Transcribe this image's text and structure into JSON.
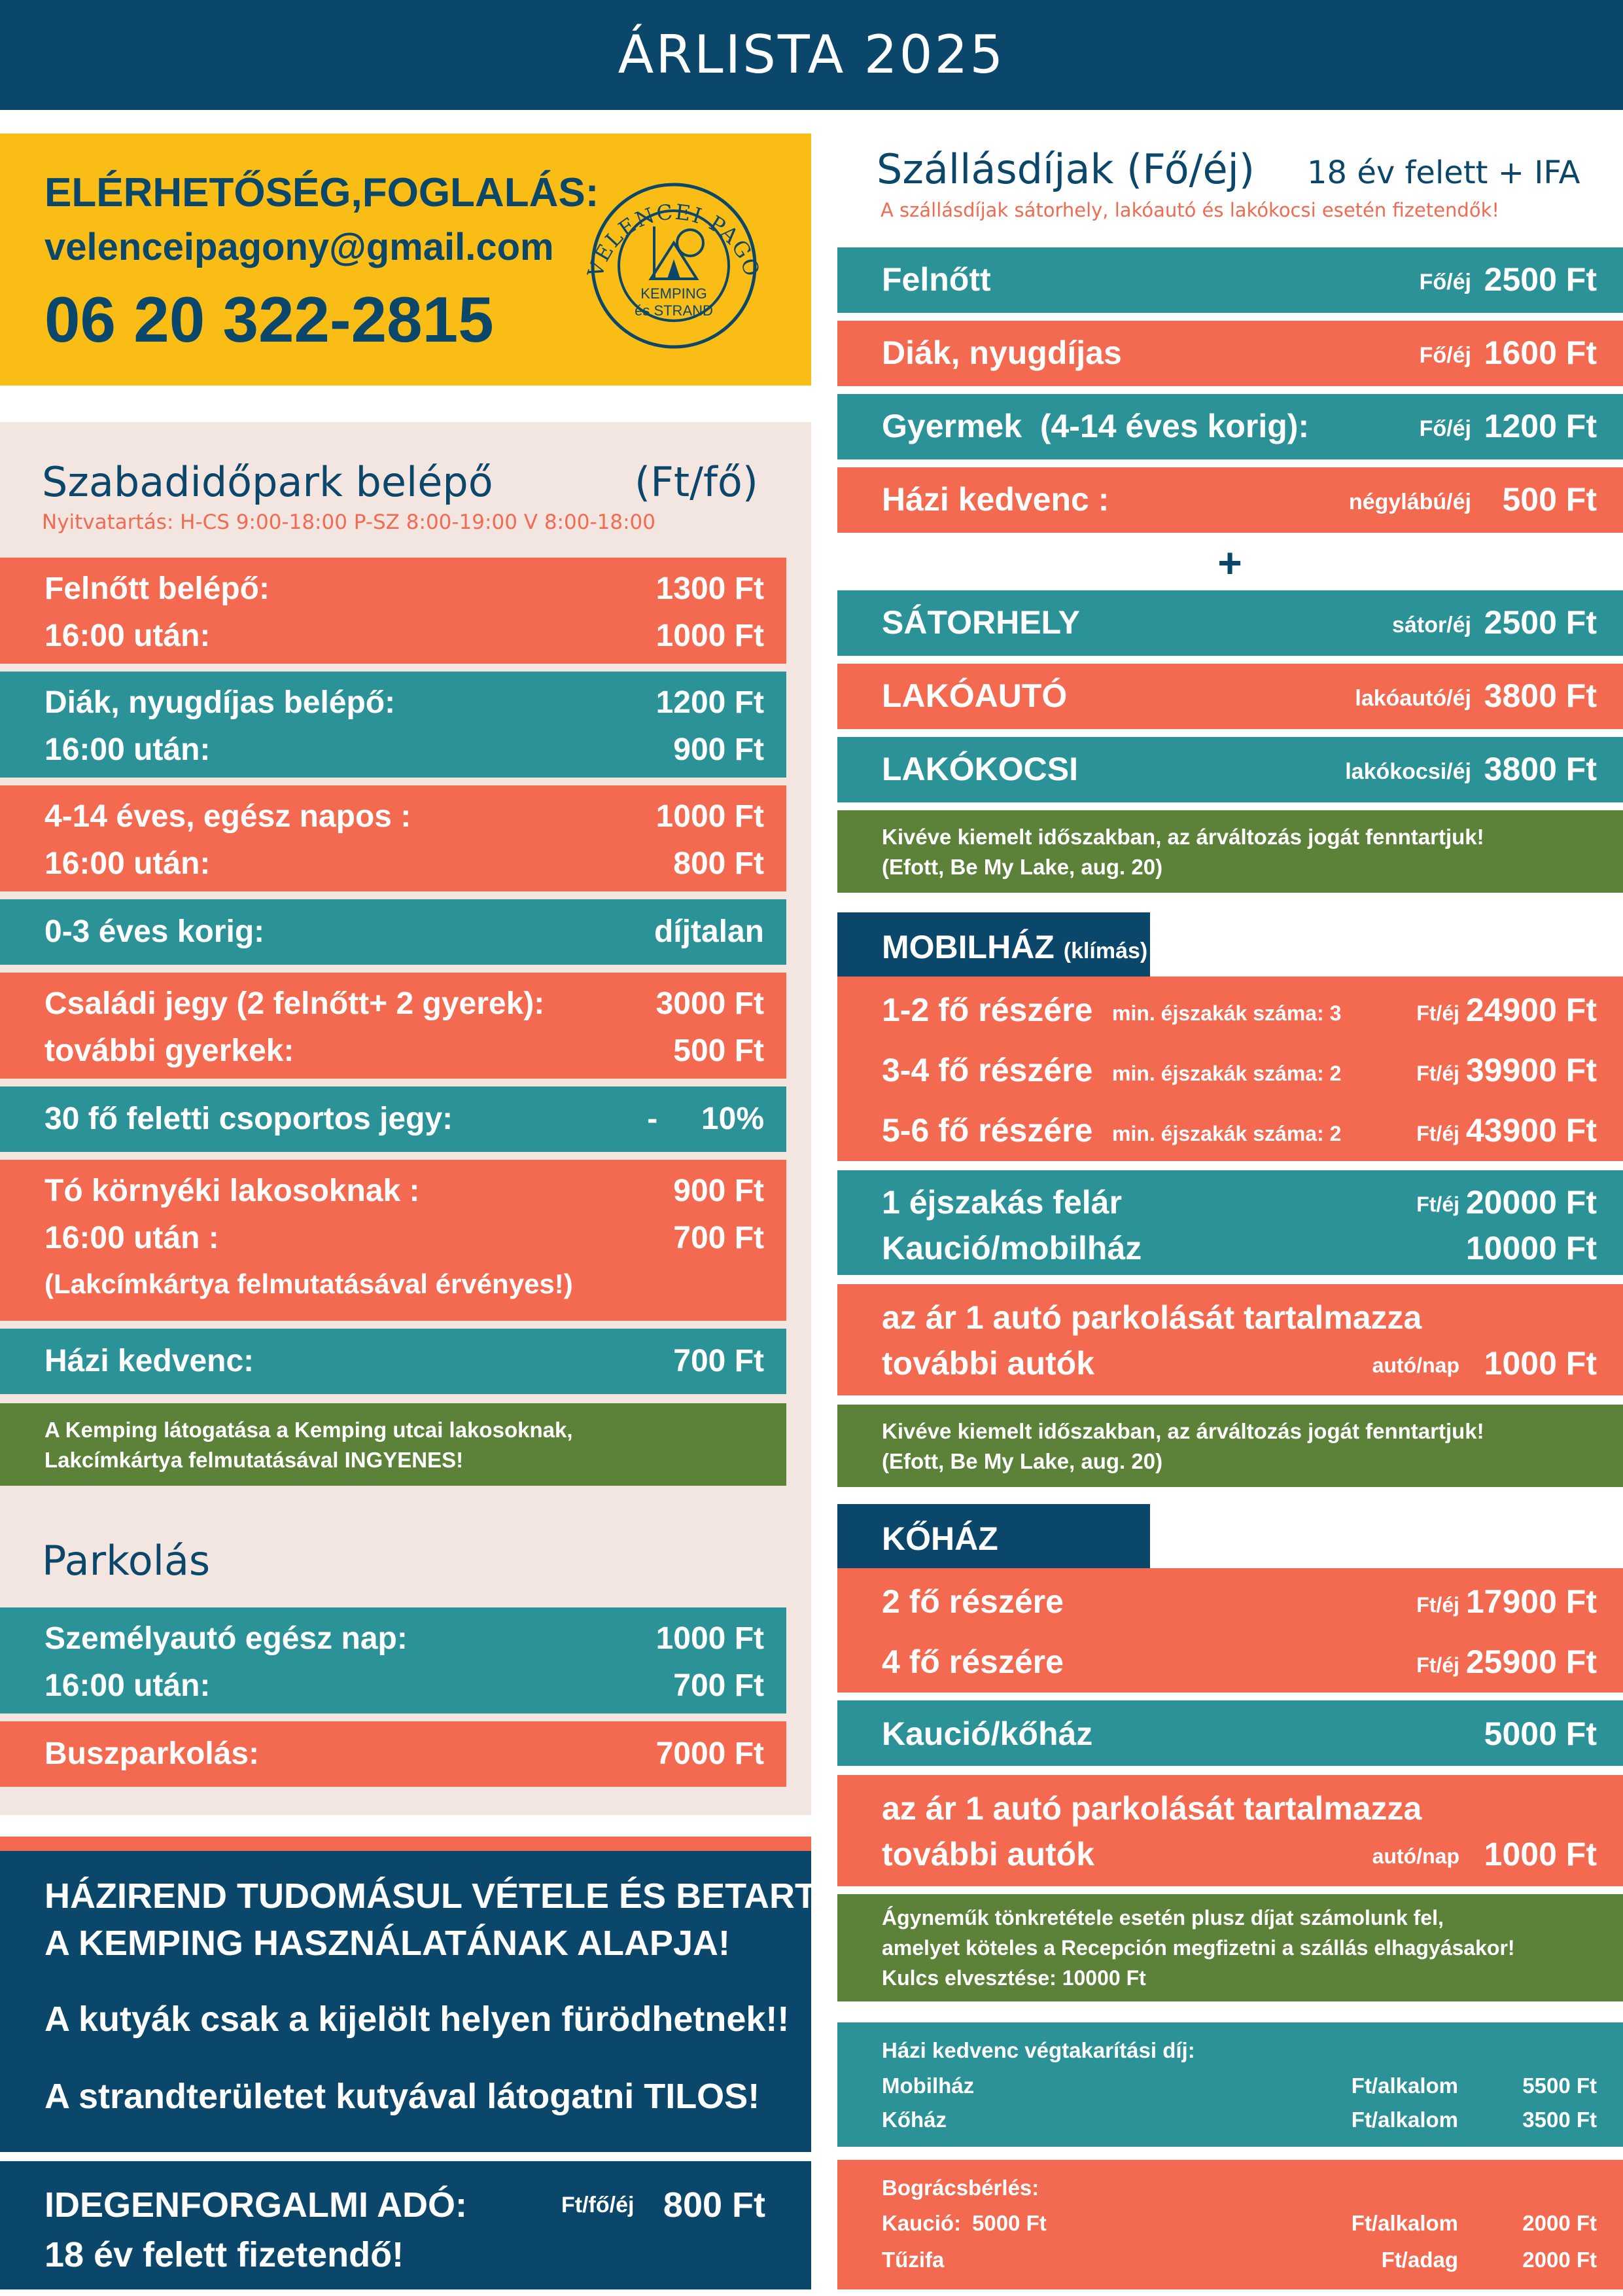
{
  "header": {
    "title": "ÁRLISTA 2025"
  },
  "contact": {
    "heading": "ELÉRHETŐSÉG,FOGLALÁS:",
    "email": "velenceipagony@gmail.com",
    "phone": "06 20 322-2815"
  },
  "logo": {
    "name": "VELENCEI PAGONY",
    "line1": "KEMPING",
    "line2": "és STRAND"
  },
  "park": {
    "title": "Szabadidőpark belépő",
    "unit": "(Ft/fő)",
    "hours": "Nyitvatartás:  H-CS 9:00-18:00   P-SZ 8:00-19:00   V 8:00-18:00",
    "rows": [
      {
        "l1": "Felnőtt belépő:",
        "v1": "1300 Ft",
        "l2": "16:00 után:",
        "v2": "1000 Ft"
      },
      {
        "l1": "Diák, nyugdíjas belépő:",
        "v1": "1200 Ft",
        "l2": "16:00 után:",
        "v2": "900 Ft"
      },
      {
        "l1": "4-14  éves, egész napos :",
        "v1": "1000 Ft",
        "l2": "16:00 után:",
        "v2": "800 Ft"
      },
      {
        "l1": "0-3 éves korig:",
        "v1": "díjtalan"
      },
      {
        "l1": "Családi jegy (2 felnőtt+ 2 gyerek):",
        "v1": "3000 Ft",
        "l2": "további gyerkek:",
        "v2": "500 Ft"
      },
      {
        "l1": "30 fő feletti csoportos jegy:",
        "v1": "-     10%"
      },
      {
        "l1": "Tó környéki lakosoknak :",
        "v1": "900 Ft",
        "l2": "16:00 után :",
        "v2": "700 Ft",
        "l3": "(Lakcímkártya felmutatásával érvényes!)"
      },
      {
        "l1": "Házi kedvenc:",
        "v1": "700 Ft"
      }
    ],
    "note1": "A Kemping látogatása a Kemping utcai lakosoknak,",
    "note2": "Lakcímkártya felmutatásával INGYENES!"
  },
  "parking": {
    "title": "Parkolás",
    "car_label": "Személyautó egész nap:",
    "car_value": "1000 Ft",
    "car_after_label": "16:00 után:",
    "car_after_value": "700 Ft",
    "bus_label": "Buszparkolás:",
    "bus_value": "7000 Ft"
  },
  "rules": {
    "line1": "HÁZIREND TUDOMÁSUL VÉTELE ÉS BETARTÁSA",
    "line2": "A KEMPING HASZNÁLATÁNAK ALAPJA!",
    "line3": "A kutyák csak a kijelölt helyen fürödhetnek!!",
    "line4": "A strandterületet kutyával látogatni TILOS!"
  },
  "tax": {
    "label": "IDEGENFORGALMI ADÓ:",
    "unit": "Ft/fő/éj",
    "value": "800 Ft",
    "note": "18 év felett fizetendő!"
  },
  "accommodation": {
    "title": "Szállásdíjak (Fő/éj)",
    "title_right": "18 év felett + IFA",
    "subtitle": "A szállásdíjak sátorhely, lakóautó és lakókocsi esetén fizetendők!",
    "rows": [
      {
        "label": "Felnőtt",
        "unit": "Fő/éj",
        "value": "2500 Ft"
      },
      {
        "label": "Diák, nyugdíjas",
        "unit": "Fő/éj",
        "value": "1600 Ft"
      },
      {
        "label": "Gyermek  (4-14 éves korig):",
        "unit": "Fő/éj",
        "value": "1200 Ft"
      },
      {
        "label": "Házi kedvenc :",
        "unit": "négylábú/éj",
        "value": "500 Ft"
      }
    ],
    "plus": "+",
    "places": [
      {
        "label": "SÁTORHELY",
        "unit": "sátor/éj",
        "value": "2500 Ft"
      },
      {
        "label": "LAKÓAUTÓ",
        "unit": "lakóautó/éj",
        "value": "3800 Ft"
      },
      {
        "label": "LAKÓKOCSI",
        "unit": "lakókocsi/éj",
        "value": "3800 Ft"
      }
    ],
    "note1": "Kivéve kiemelt időszakban, az árváltozás jogát fenntartjuk!",
    "note2": "(Efott, Be My Lake, aug. 20)"
  },
  "mobilhaz": {
    "title": "MOBILHÁZ",
    "title_sub": "(klímás)",
    "rows": [
      {
        "label": "1-2 fő részére",
        "min": "min. éjszakák száma: 3",
        "unit": "Ft/éj",
        "value": "24900 Ft"
      },
      {
        "label": "3-4 fő részére",
        "min": "min. éjszakák száma: 2",
        "unit": "Ft/éj",
        "value": "39900 Ft"
      },
      {
        "label": "5-6 fő részére",
        "min": "min. éjszakák száma: 2",
        "unit": "Ft/éj",
        "value": "43900 Ft"
      }
    ],
    "extra_label": "1 éjszakás felár",
    "extra_unit": "Ft/éj",
    "extra_value": "20000 Ft",
    "deposit_label": "Kaució/mobilház",
    "deposit_value": "10000 Ft",
    "parking1": "az ár 1 autó parkolását tartalmazza",
    "parking2": "további autók",
    "parking_unit": "autó/nap",
    "parking_value": "1000 Ft",
    "note1": "Kivéve kiemelt időszakban, az árváltozás jogát fenntartjuk!",
    "note2": "(Efott, Be My Lake, aug. 20)"
  },
  "kohaz": {
    "title": "KŐHÁZ",
    "rows": [
      {
        "label": "2 fő részére",
        "unit": "Ft/éj",
        "value": "17900 Ft"
      },
      {
        "label": "4 fő részére",
        "unit": "Ft/éj",
        "value": "25900 Ft"
      }
    ],
    "deposit_label": "Kaució/kőház",
    "deposit_value": "5000 Ft",
    "parking1": "az ár 1 autó parkolását tartalmazza",
    "parking2": "további autók",
    "parking_unit": "autó/nap",
    "parking_value": "1000 Ft",
    "note1": "Ágyneműk tönkretétele esetén plusz díjat számolunk fel,",
    "note2": "amelyet köteles a Recepción megfizetni a szállás elhagyásakor!",
    "note3": "Kulcs elvesztése: 10000 Ft"
  },
  "pet_cleaning": {
    "title": "Házi kedvenc végtakarítási díj:",
    "rows": [
      {
        "label": "Mobilház",
        "unit": "Ft/alkalom",
        "value": "5500 Ft"
      },
      {
        "label": "Kőház",
        "unit": "Ft/alkalom",
        "value": "3500 Ft"
      }
    ]
  },
  "bogracs": {
    "title": "Bográcsbérlés:",
    "deposit_label": "Kaució:",
    "deposit_amount": "5000 Ft",
    "deposit_unit": "Ft/alkalom",
    "deposit_value": "2000 Ft",
    "wood_label": "Tűzifa",
    "wood_unit": "Ft/adag",
    "wood_value": "2000 Ft"
  }
}
